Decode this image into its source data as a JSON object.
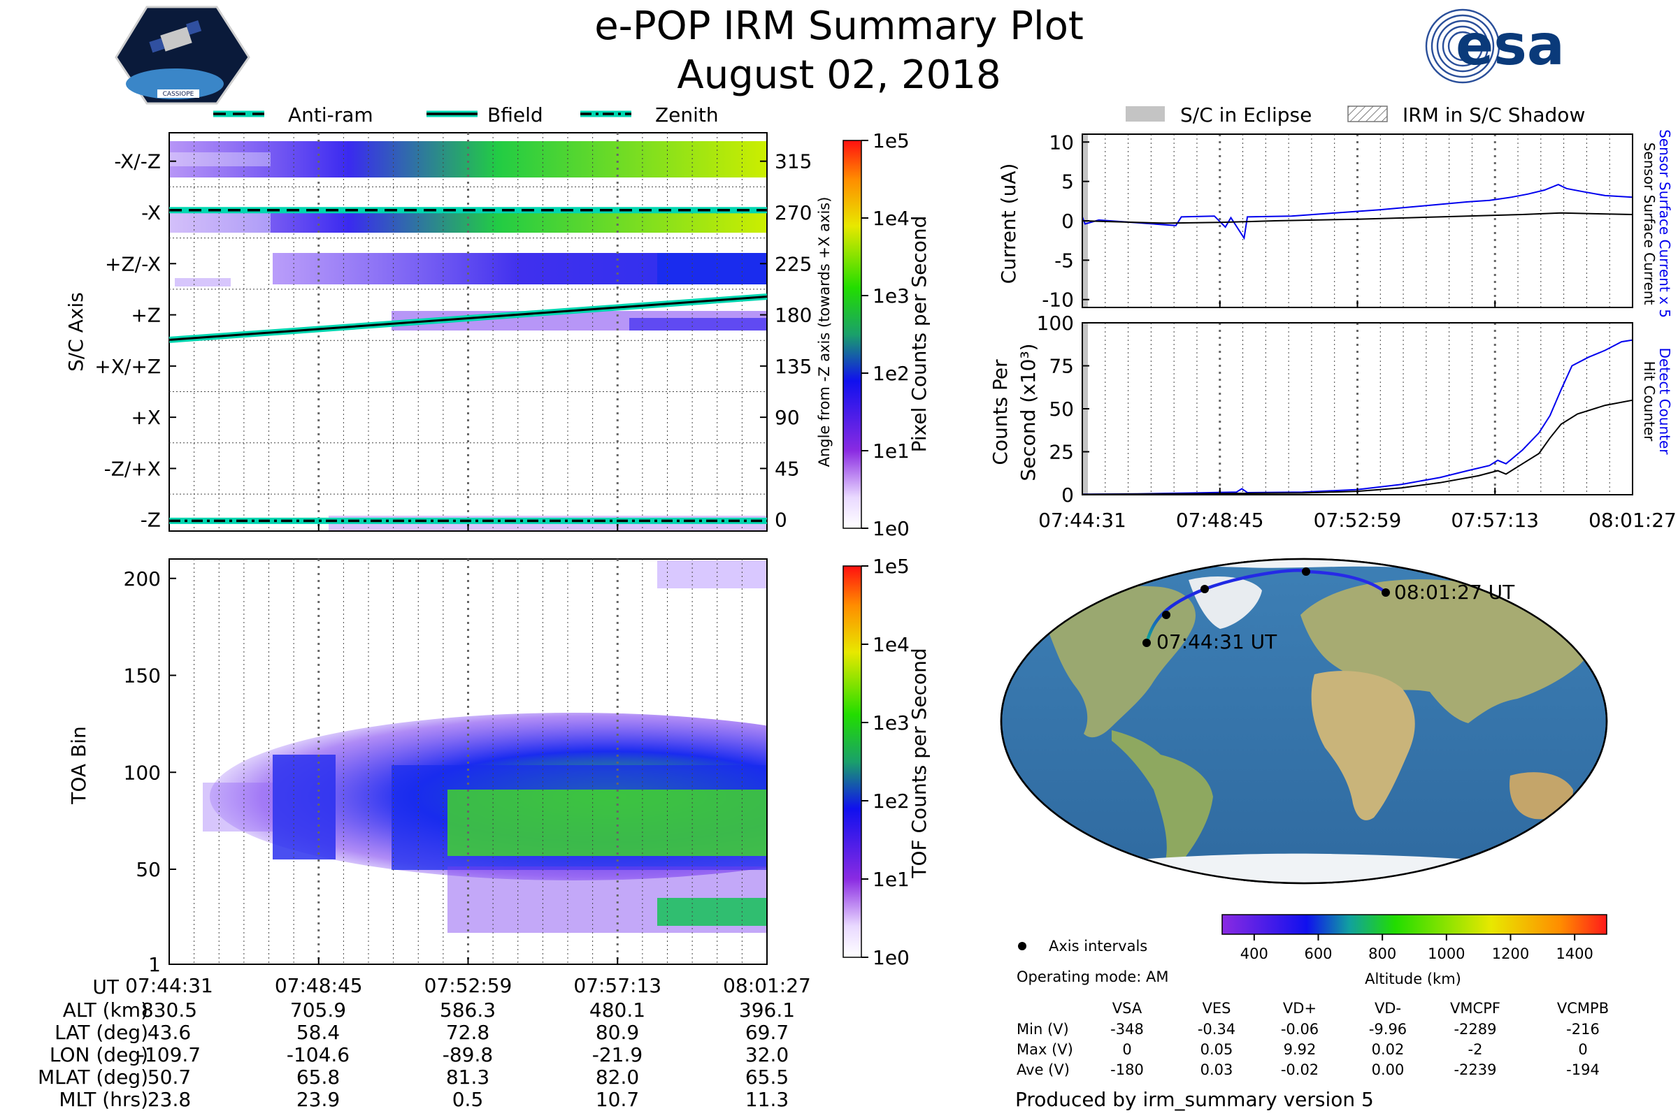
{
  "title": "e-POP IRM Summary Plot",
  "date": "August 02, 2018",
  "logos": {
    "cassiope": "CASSIOPE",
    "esa": "esa"
  },
  "top_legend": {
    "antiram": "Anti-ram",
    "bfield": "Bfield",
    "zenith": "Zenith"
  },
  "right_legend": {
    "eclipse": "S/C in Eclipse",
    "shadow": "IRM in S/C Shadow"
  },
  "colors": {
    "trace_blue": "#0000ee",
    "trace_black": "#000000",
    "orbit_line": "#1f1fd8",
    "highlight": "#00d6b0"
  },
  "time_ticks": [
    "07:44:31",
    "07:48:45",
    "07:52:59",
    "07:57:13",
    "08:01:27"
  ],
  "chart_data": [
    {
      "type": "heatmap",
      "name": "pixel-angle-spectrogram",
      "ylabel_left": "S/C Axis",
      "ylabel_right": "Angle from -Z axis (towards +X axis)",
      "axis_labels": [
        "-X/-Z",
        "-X",
        "+Z/-X",
        "+Z",
        "+X/+Z",
        "+X",
        "-Z/+X",
        "-Z"
      ],
      "angle_ticks": [
        315,
        270,
        225,
        180,
        135,
        90,
        45,
        0
      ],
      "ylim": [
        -10,
        340
      ],
      "colorbar": {
        "label": "Pixel Counts per Second",
        "ticks": [
          "1e5",
          "1e4",
          "1e3",
          "1e2",
          "1e1",
          "1e0"
        ]
      },
      "bfield_angle_start": 158,
      "bfield_angle_end": 196,
      "antiram_angle": 272,
      "zenith_angle": -1
    },
    {
      "type": "heatmap",
      "name": "toa-spectrogram",
      "ylabel": "TOA Bin",
      "yticks": [
        1,
        50,
        100,
        150,
        200
      ],
      "ylim": [
        1,
        210
      ],
      "colorbar": {
        "label": "TOF Counts per Second",
        "ticks": [
          "1e5",
          "1e4",
          "1e3",
          "1e2",
          "1e1",
          "1e0"
        ]
      }
    },
    {
      "type": "line",
      "name": "current",
      "ylabel": "Current (uA)",
      "yticks": [
        10,
        5,
        0,
        -5,
        -10
      ],
      "ylim": [
        -11,
        11
      ],
      "series": [
        {
          "name": "Sensor Surface Current x 5",
          "color": "#0000ee",
          "points": [
            [
              0,
              0.5
            ],
            [
              0.005,
              -0.4
            ],
            [
              0.03,
              0.1
            ],
            [
              0.09,
              -0.2
            ],
            [
              0.17,
              -0.6
            ],
            [
              0.18,
              0.5
            ],
            [
              0.24,
              0.6
            ],
            [
              0.26,
              -0.8
            ],
            [
              0.27,
              0.4
            ],
            [
              0.294,
              -2.2
            ],
            [
              0.3,
              0.5
            ],
            [
              0.38,
              0.6
            ],
            [
              0.46,
              1.0
            ],
            [
              0.54,
              1.4
            ],
            [
              0.62,
              1.9
            ],
            [
              0.7,
              2.4
            ],
            [
              0.74,
              2.6
            ],
            [
              0.78,
              3.0
            ],
            [
              0.81,
              3.4
            ],
            [
              0.84,
              3.9
            ],
            [
              0.865,
              4.6
            ],
            [
              0.88,
              4.1
            ],
            [
              0.91,
              3.7
            ],
            [
              0.95,
              3.2
            ],
            [
              1.0,
              3.0
            ]
          ]
        },
        {
          "name": "Sensor Surface Current",
          "color": "#000000",
          "points": [
            [
              0,
              0.0
            ],
            [
              0.15,
              -0.3
            ],
            [
              0.25,
              -0.2
            ],
            [
              0.35,
              0.0
            ],
            [
              0.5,
              0.2
            ],
            [
              0.65,
              0.5
            ],
            [
              0.8,
              0.8
            ],
            [
              0.87,
              1.0
            ],
            [
              0.93,
              0.9
            ],
            [
              1.0,
              0.8
            ]
          ]
        }
      ],
      "right_labels": [
        "Sensor Surface Current x 5",
        "Sensor Surface Current"
      ]
    },
    {
      "type": "line",
      "name": "counts",
      "ylabel": "Counts Per Second (x10³)",
      "yticks": [
        100,
        75,
        50,
        25,
        0
      ],
      "ylim": [
        0,
        100
      ],
      "series": [
        {
          "name": "Detect Counter",
          "color": "#0000ee",
          "points": [
            [
              0,
              0.3
            ],
            [
              0.1,
              0.5
            ],
            [
              0.2,
              1.0
            ],
            [
              0.28,
              1.5
            ],
            [
              0.29,
              3.5
            ],
            [
              0.3,
              1.2
            ],
            [
              0.4,
              1.5
            ],
            [
              0.5,
              3.0
            ],
            [
              0.58,
              6.0
            ],
            [
              0.65,
              10.0
            ],
            [
              0.7,
              14.0
            ],
            [
              0.74,
              17.0
            ],
            [
              0.755,
              20.0
            ],
            [
              0.77,
              18.0
            ],
            [
              0.8,
              26.0
            ],
            [
              0.83,
              36.0
            ],
            [
              0.85,
              46.0
            ],
            [
              0.87,
              61.0
            ],
            [
              0.89,
              75.0
            ],
            [
              0.92,
              80.0
            ],
            [
              0.95,
              84.0
            ],
            [
              0.98,
              89.0
            ],
            [
              1.0,
              90.0
            ]
          ]
        },
        {
          "name": "Hit Counter",
          "color": "#000000",
          "points": [
            [
              0,
              0.2
            ],
            [
              0.2,
              0.5
            ],
            [
              0.3,
              0.8
            ],
            [
              0.4,
              1.0
            ],
            [
              0.5,
              2.0
            ],
            [
              0.58,
              4.0
            ],
            [
              0.65,
              7.0
            ],
            [
              0.72,
              11.0
            ],
            [
              0.755,
              14.0
            ],
            [
              0.77,
              12.0
            ],
            [
              0.8,
              18.0
            ],
            [
              0.83,
              24.0
            ],
            [
              0.85,
              33.0
            ],
            [
              0.87,
              41.0
            ],
            [
              0.9,
              47.0
            ],
            [
              0.95,
              52.0
            ],
            [
              1.0,
              55.0
            ]
          ]
        }
      ],
      "right_labels": [
        "Detect Counter",
        "Hit Counter"
      ]
    }
  ],
  "map": {
    "start_label": "07:44:31 UT",
    "end_label": "08:01:27 UT",
    "track": [
      [
        -109.7,
        43.6
      ],
      [
        -104.6,
        58.4
      ],
      [
        -89.8,
        72.8
      ],
      [
        -21.9,
        80.9
      ],
      [
        32.0,
        69.7
      ]
    ],
    "colorbar_ticks": [
      "400",
      "600",
      "800",
      "1000",
      "1200",
      "1400"
    ],
    "colorbar_label": "Altitude (km)"
  },
  "axis_intervals": "Axis intervals",
  "operating_mode": "Operating mode: AM",
  "voltage_table": {
    "headers": [
      "VSA",
      "VES",
      "VD+",
      "VD-",
      "VMCPF",
      "VCMPB"
    ],
    "rows": [
      {
        "label": "Min (V)",
        "values": [
          "-348",
          "-0.34",
          "-0.06",
          "-9.96",
          "-2289",
          "-216"
        ]
      },
      {
        "label": "Max (V)",
        "values": [
          "0",
          "0.05",
          "9.92",
          "0.02",
          "-2",
          "0"
        ]
      },
      {
        "label": "Ave (V)",
        "values": [
          "-180",
          "0.03",
          "-0.02",
          "0.00",
          "-2239",
          "-194"
        ]
      }
    ]
  },
  "ephemeris": {
    "ut_label": "UT",
    "rows": [
      {
        "label": "ALT (km)",
        "values": [
          "830.5",
          "705.9",
          "586.3",
          "480.1",
          "396.1"
        ]
      },
      {
        "label": "LAT (deg)",
        "values": [
          "43.6",
          "58.4",
          "72.8",
          "80.9",
          "69.7"
        ]
      },
      {
        "label": "LON (deg)",
        "values": [
          "-109.7",
          "-104.6",
          "-89.8",
          "-21.9",
          "32.0"
        ]
      },
      {
        "label": "MLAT (deg)",
        "values": [
          "50.7",
          "65.8",
          "81.3",
          "82.0",
          "65.5"
        ]
      },
      {
        "label": "MLT (hrs)",
        "values": [
          "23.8",
          "23.9",
          "0.5",
          "10.7",
          "11.3"
        ]
      }
    ]
  },
  "footer": "Produced by irm_summary version 5"
}
